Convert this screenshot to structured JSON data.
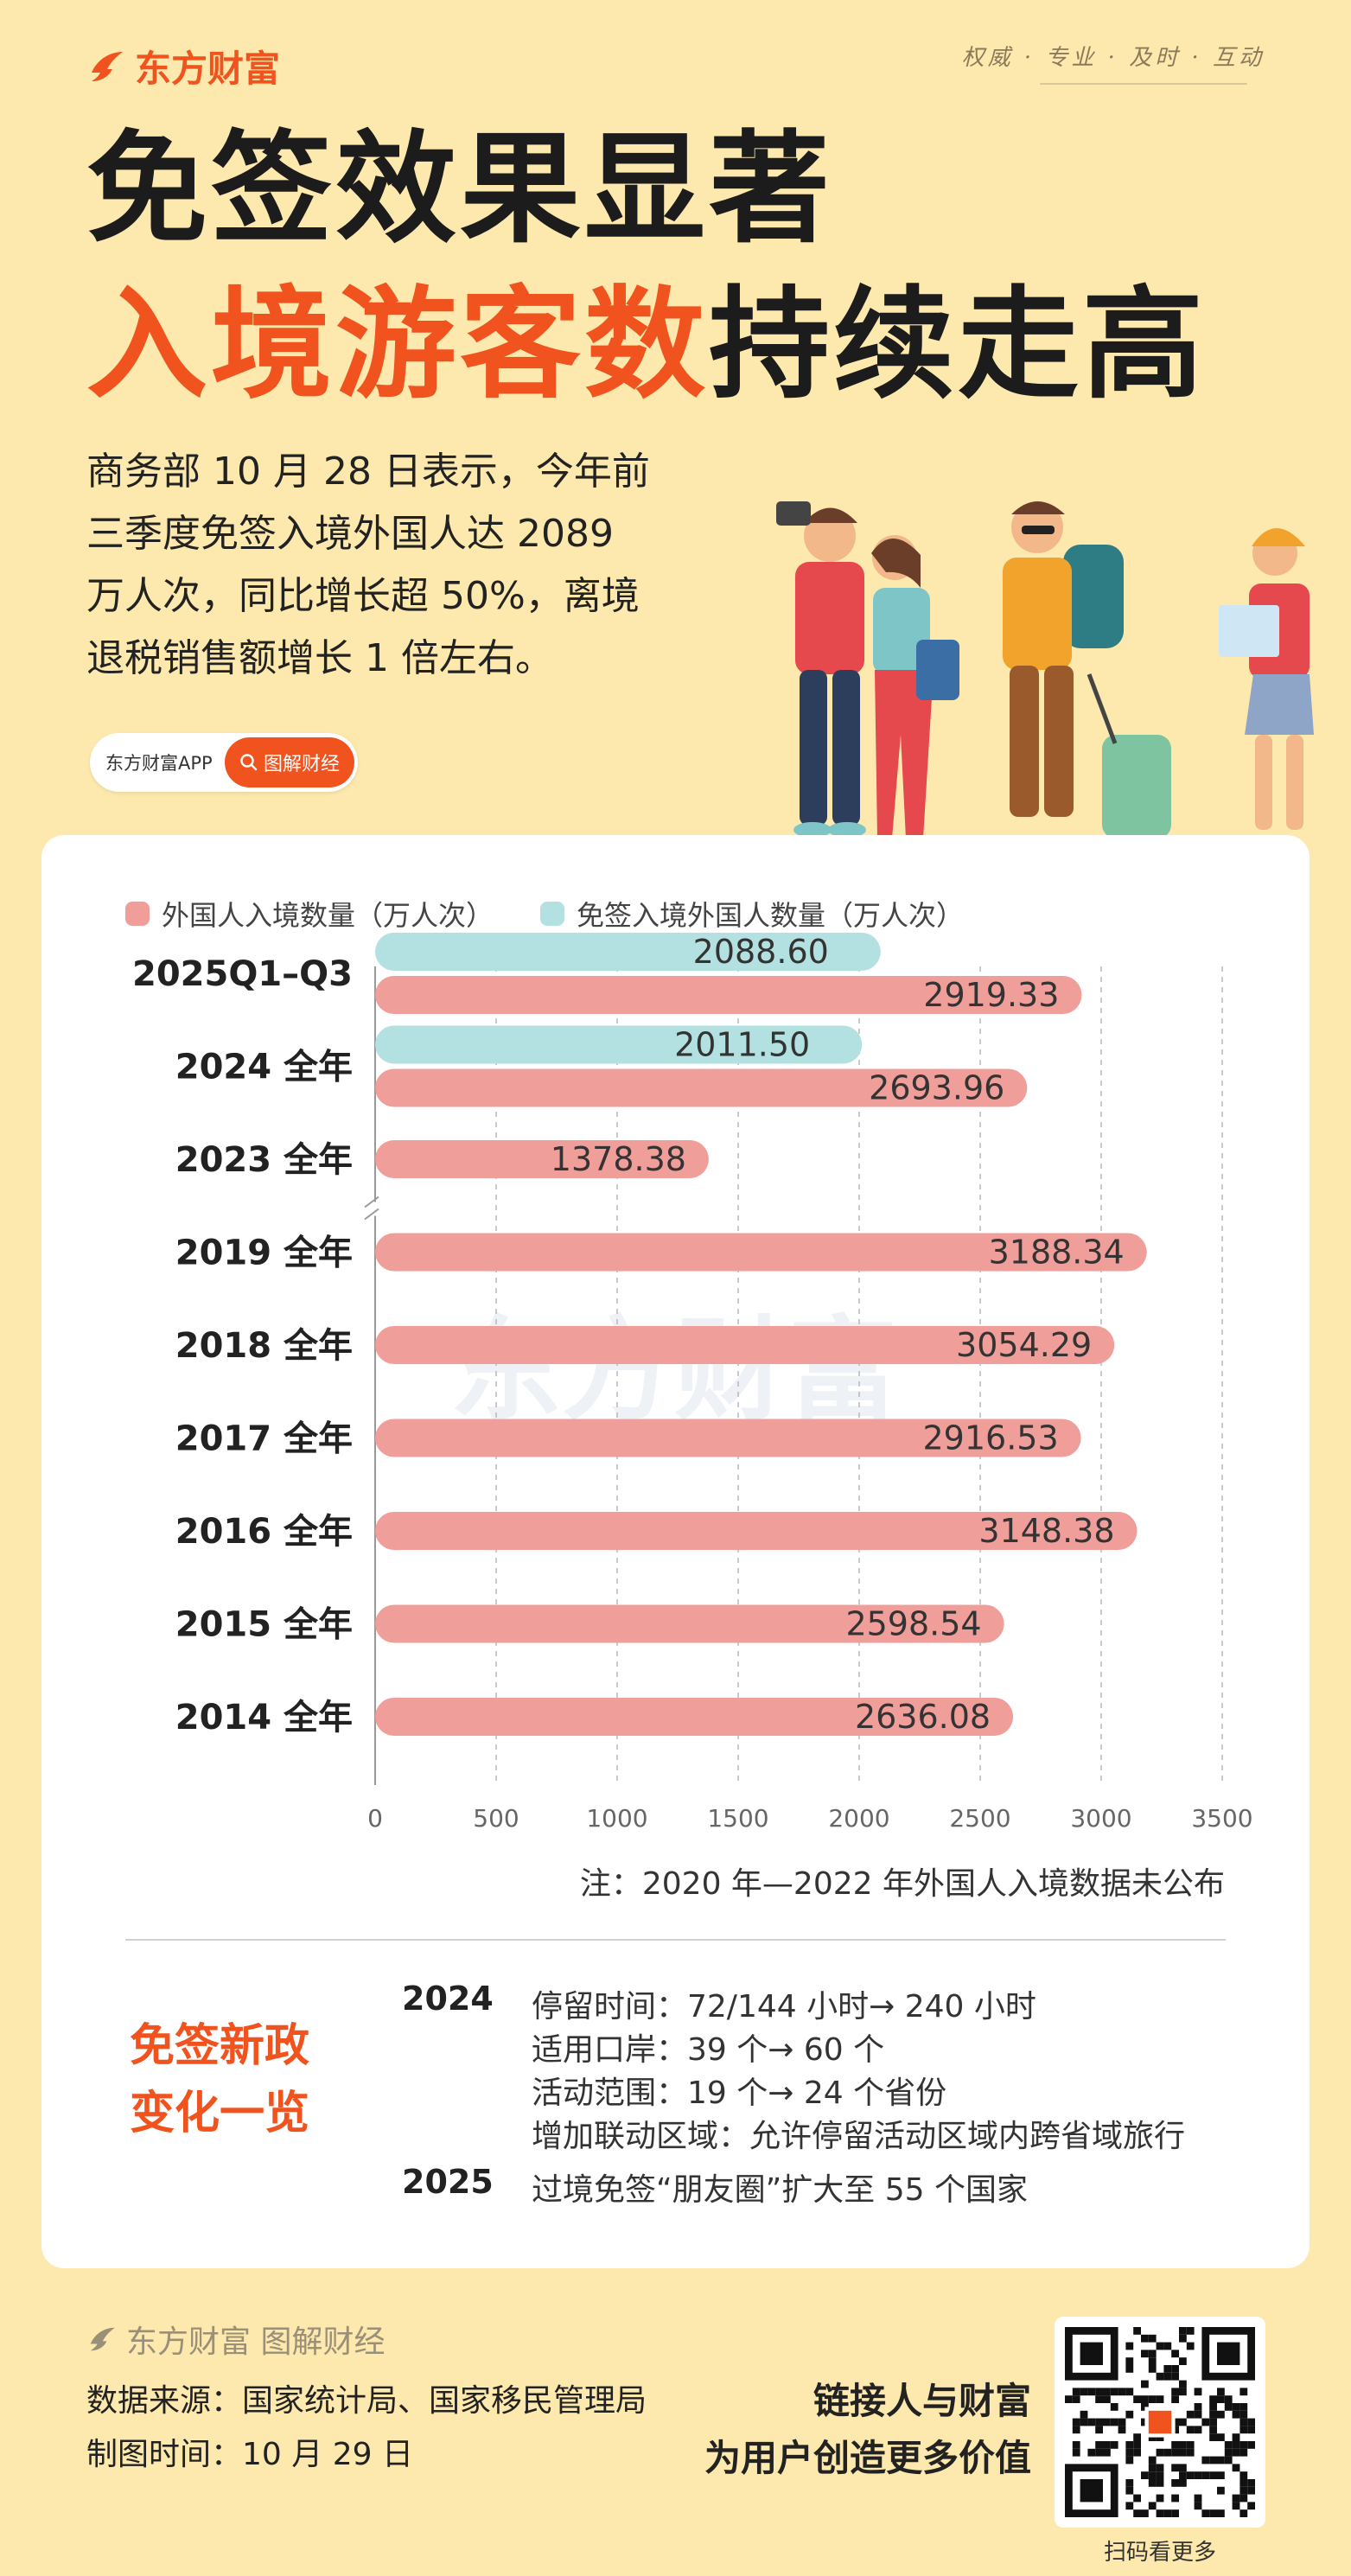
{
  "header": {
    "brand": "东方财富",
    "slogan": "权威 · 专业 · 及时 · 互动",
    "title_line1": "免签效果显著",
    "title_line2_highlight": "入境游客数",
    "title_line2_rest": "持续走高"
  },
  "intro": {
    "lines": [
      "商务部 10 月 28 日表示，今年前",
      "三季度免签入境外国人达 2089",
      "万人次，同比增长超 50%，离境",
      "退税销售额增长 1 倍左右。"
    ]
  },
  "chip": {
    "app_label": "东方财富APP",
    "button_label": "图解财经"
  },
  "legend": {
    "series1": "外国人入境数量（万人次）",
    "series2": "免签入境外国人数量（万人次）"
  },
  "chart_data": {
    "type": "bar",
    "orientation": "horizontal",
    "categories": [
      "2025Q1–Q3",
      "2024 全年",
      "2023 全年",
      "2019 全年",
      "2018 全年",
      "2017 全年",
      "2016 全年",
      "2015 全年",
      "2014 全年"
    ],
    "series": [
      {
        "name": "外国人入境数量（万人次）",
        "color": "#ef9e9a",
        "values": [
          2919.33,
          2693.96,
          1378.38,
          3188.34,
          3054.29,
          2916.53,
          3148.38,
          2598.54,
          2636.08
        ],
        "labels": [
          "2919.33",
          "2693.96",
          "1378.38",
          "3188.34",
          "3054.29",
          "2916.53",
          "3148.38",
          "2598.54",
          "2636.08"
        ]
      },
      {
        "name": "免签入境外国人数量（万人次）",
        "color": "#b3e0e1",
        "values": [
          2088.6,
          2011.5,
          null,
          null,
          null,
          null,
          null,
          null,
          null
        ],
        "labels": [
          "2088.60",
          "2011.50",
          "",
          "",
          "",
          "",
          "",
          "",
          ""
        ]
      }
    ],
    "xlim": [
      0,
      3500
    ],
    "xticks": [
      "0",
      "500",
      "1000",
      "1500",
      "2000",
      "2500",
      "3000",
      "3500"
    ],
    "grid": true,
    "legend_position": "top-left",
    "axis_break_after": "2023 全年",
    "watermark": "东方财富"
  },
  "note": "注：2020 年—2022 年外国人入境数据未公布",
  "policy": {
    "title_line1": "免签新政",
    "title_line2": "变化一览",
    "year_2024": "2024",
    "lines_2024": [
      "停留时间：72/144 小时→ 240 小时",
      "适用口岸：39 个→ 60 个",
      "活动范围：19 个→ 24 个省份",
      "增加联动区域：允许停留活动区域内跨省域旅行"
    ],
    "year_2025": "2025",
    "line_2025": "过境免签“朋友圈”扩大至 55 个国家"
  },
  "footer": {
    "brand": "东方财富 图解财经",
    "source": "数据来源：国家统计局、国家移民管理局",
    "time": "制图时间：10 月 29 日",
    "slogan_line1": "链接人与财富",
    "slogan_line2": "为用户创造更多价值",
    "qr_caption": "扫码看更多"
  },
  "colors": {
    "accent": "#f0531e",
    "background": "#fde9ad",
    "bar_primary": "#ef9e9a",
    "bar_secondary": "#b3e0e1"
  }
}
